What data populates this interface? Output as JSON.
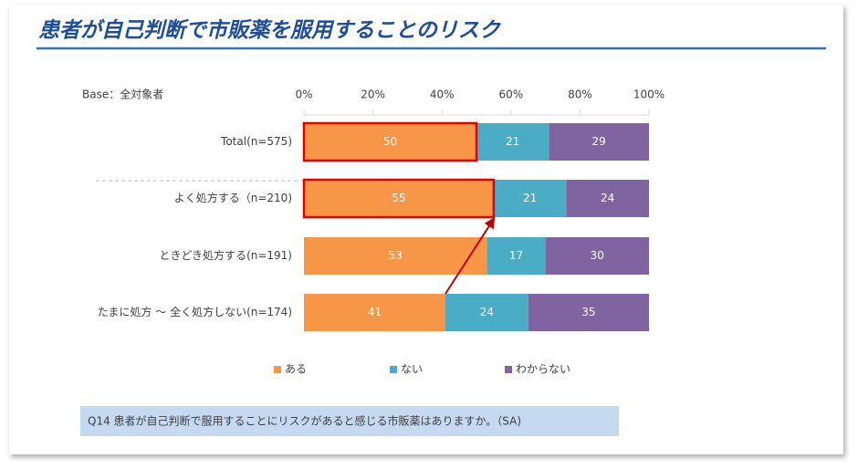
{
  "chart_data": {
    "type": "stacked-bar-horizontal",
    "title": "患者が自己判断で市販薬を服用することのリスク",
    "base_label": "Base：全対象者",
    "categories": [
      "Total(n=575)",
      "よく処方する（n=210)",
      "ときどき処方する(n=191)",
      "たまに処方 ～ 全く処方しない(n=174)"
    ],
    "series": [
      {
        "name": "ある",
        "color": "#f79646",
        "values": [
          50,
          55,
          53,
          41
        ]
      },
      {
        "name": "ない",
        "color": "#4bacc6",
        "values": [
          21,
          21,
          17,
          24
        ]
      },
      {
        "name": "わからない",
        "color": "#8064a2",
        "values": [
          29,
          24,
          30,
          35
        ]
      }
    ],
    "xlim": [
      0,
      100
    ],
    "xticks": [
      {
        "value": 0,
        "label": "0%"
      },
      {
        "value": 20,
        "label": "20%"
      },
      {
        "value": 40,
        "label": "40%"
      },
      {
        "value": 60,
        "label": "60%"
      },
      {
        "value": 80,
        "label": "80%"
      },
      {
        "value": 100,
        "label": "100%"
      }
    ],
    "footnote": "Q14  患者が自己判断で服用することにリスクがあると感じる市販薬はありますか。（SA)"
  }
}
